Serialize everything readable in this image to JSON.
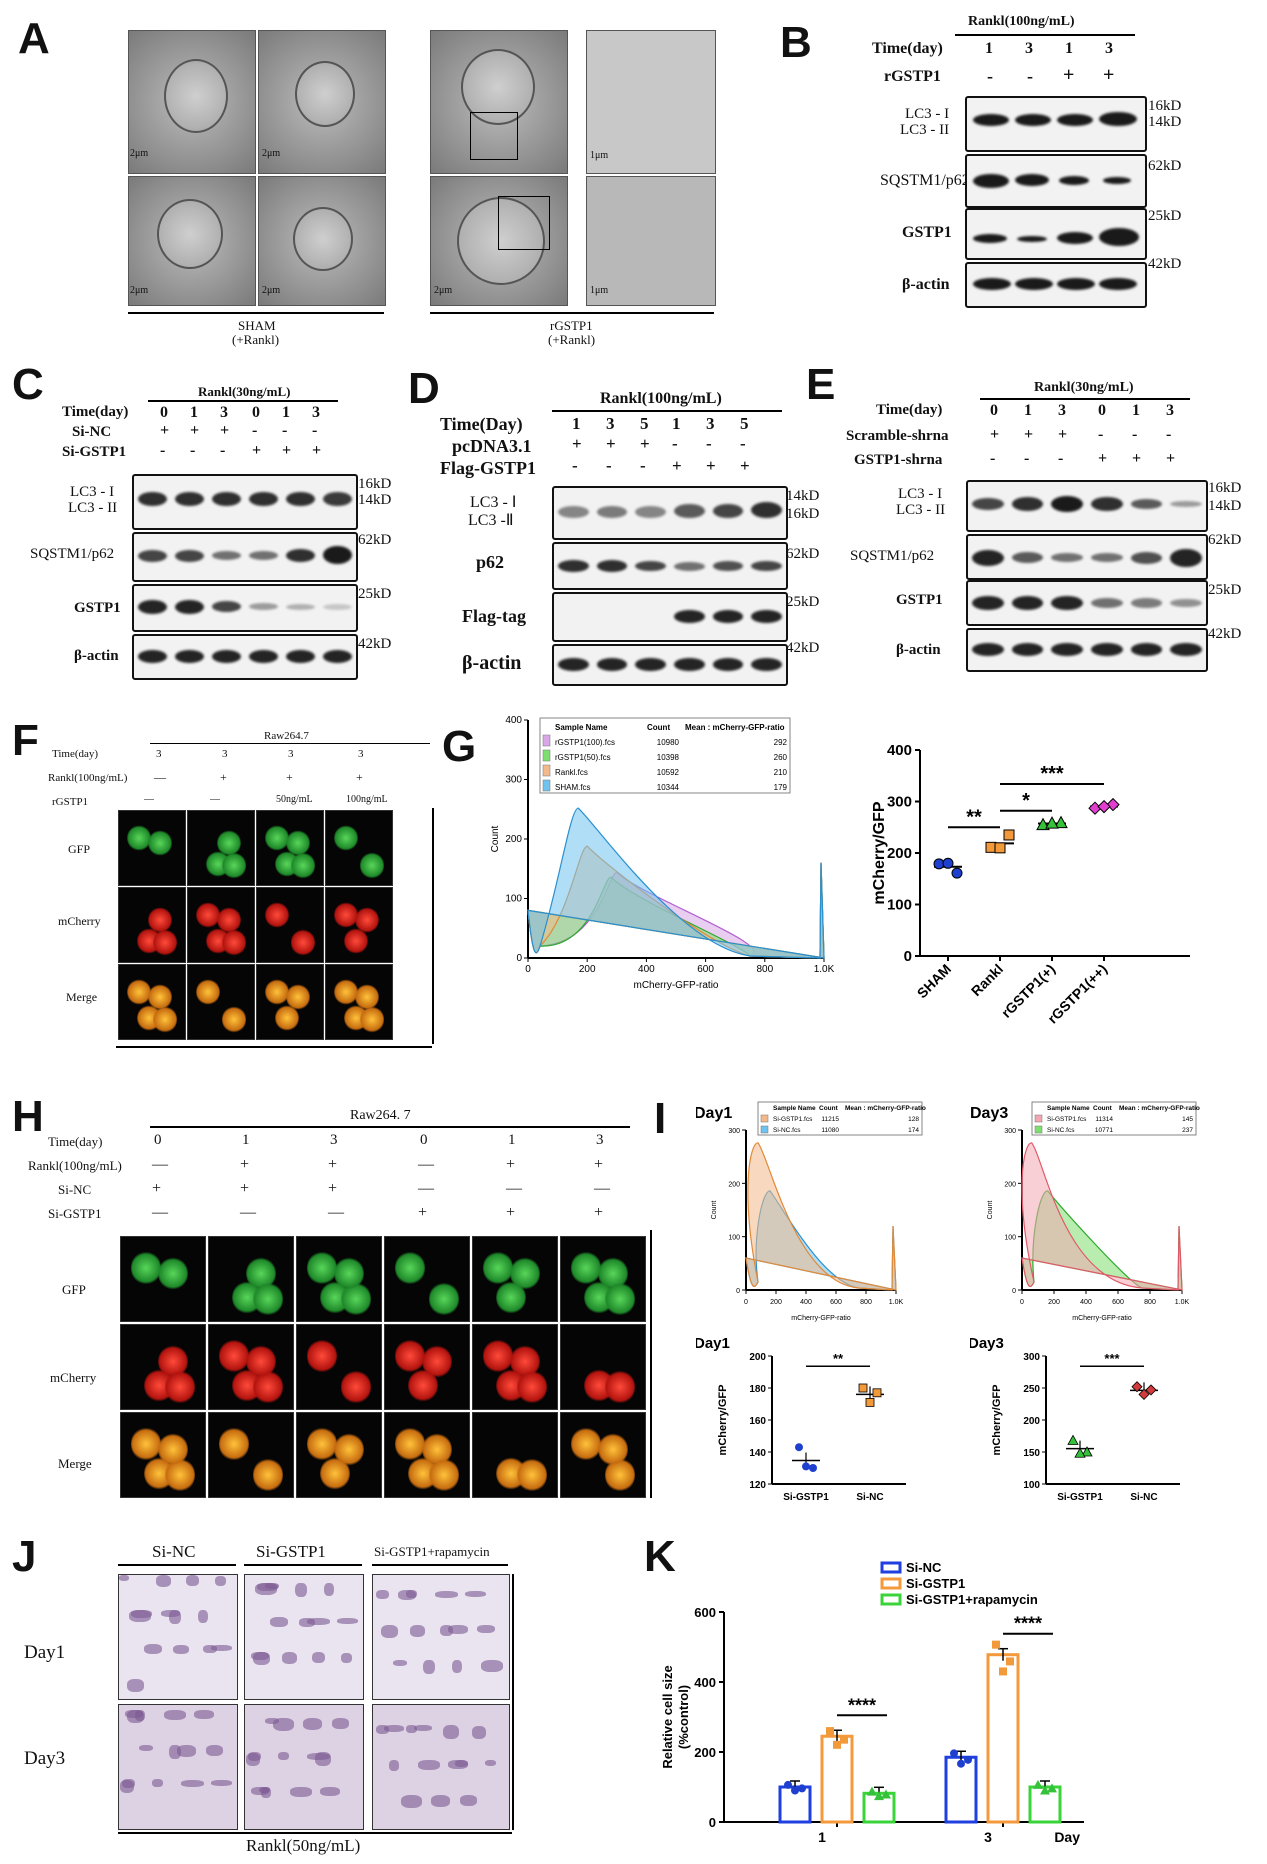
{
  "panels": {
    "A": {
      "label": "A",
      "scale": "2μm",
      "scale_zoom": "1μm",
      "group1": "SHAM",
      "group1_sub": "(+Rankl)",
      "group2": "rGSTP1",
      "group2_sub": "(+Rankl)"
    },
    "B": {
      "label": "B",
      "header": "Rankl(100ng/mL)",
      "row1": "Time(day)",
      "times": [
        "1",
        "3",
        "1",
        "3"
      ],
      "row2": "rGSTP1",
      "signs": [
        "-",
        "-",
        "+",
        "+"
      ],
      "blots": [
        {
          "name": "LC3 - I",
          "name2": "LC3 - II",
          "kd": "16kD",
          "kd2": "14kD"
        },
        {
          "name": "SQSTM1/p62",
          "kd": "62kD"
        },
        {
          "name": "GSTP1",
          "kd": "25kD"
        },
        {
          "name": "β-actin",
          "kd": "42kD"
        }
      ]
    },
    "C": {
      "label": "C",
      "header": "Rankl(30ng/mL)",
      "row1": "Time(day)",
      "times": [
        "0",
        "1",
        "3",
        "0",
        "1",
        "3"
      ],
      "row2": "Si-NC",
      "signs2": [
        "+",
        "+",
        "+",
        "-",
        "-",
        "-"
      ],
      "row3": "Si-GSTP1",
      "signs3": [
        "-",
        "-",
        "-",
        "+",
        "+",
        "+"
      ],
      "blots": [
        {
          "name": "LC3 - I",
          "name2": "LC3 - II",
          "kd": "16kD",
          "kd2": "14kD"
        },
        {
          "name": "SQSTM1/p62",
          "kd": "62kD"
        },
        {
          "name": "GSTP1",
          "kd": "25kD"
        },
        {
          "name": "β-actin",
          "kd": "42kD"
        }
      ]
    },
    "D": {
      "label": "D",
      "header": "Rankl(100ng/mL)",
      "row1": "Time(Day)",
      "times": [
        "1",
        "3",
        "5",
        "1",
        "3",
        "5"
      ],
      "row2": "pcDNA3.1",
      "signs2": [
        "+",
        "+",
        "+",
        "-",
        "-",
        "-"
      ],
      "row3": "Flag-GSTP1",
      "signs3": [
        "-",
        "-",
        "-",
        "+",
        "+",
        "+"
      ],
      "blots": [
        {
          "name": "LC3 - Ⅰ",
          "name2": "LC3 -Ⅱ",
          "kd": "14kD",
          "kd2": "16kD"
        },
        {
          "name": "p62",
          "kd": "62kD"
        },
        {
          "name": "Flag-tag",
          "kd": "25kD"
        },
        {
          "name": "β-actin",
          "kd": "42kD"
        }
      ]
    },
    "E": {
      "label": "E",
      "header": "Rankl(30ng/mL)",
      "row1": "Time(day)",
      "times": [
        "0",
        "1",
        "3",
        "0",
        "1",
        "3"
      ],
      "row2": "Scramble-shrna",
      "signs2": [
        "+",
        "+",
        "+",
        "-",
        "-",
        "-"
      ],
      "row3": "GSTP1-shrna",
      "signs3": [
        "-",
        "-",
        "-",
        "+",
        "+",
        "+"
      ],
      "blots": [
        {
          "name": "LC3 - I",
          "name2": "LC3 - II",
          "kd": "16kD",
          "kd2": "14kD"
        },
        {
          "name": "SQSTM1/p62",
          "kd": "62kD"
        },
        {
          "name": "GSTP1",
          "kd": "25kD"
        },
        {
          "name": "β-actin",
          "kd": "42kD"
        }
      ]
    },
    "F": {
      "label": "F",
      "header": "Raw264.7",
      "row1": "Time(day)",
      "times": [
        "3",
        "3",
        "3",
        "3"
      ],
      "row2": "Rankl(100ng/mL)",
      "signs2": [
        "—",
        "+",
        "+",
        "+"
      ],
      "row3": "rGSTP1",
      "signs3": [
        "—",
        "—",
        "50ng/mL",
        "100ng/mL"
      ],
      "rows": [
        "GFP",
        "mCherry",
        "Merge"
      ]
    },
    "G": {
      "label": "G",
      "hist": {
        "ylabel": "Count",
        "xlabel": "mCherry-GFP-ratio",
        "yticks": [
          "0",
          "100",
          "200",
          "300",
          "400"
        ],
        "xticks": [
          "0",
          "200",
          "400",
          "600",
          "800",
          "1.0K"
        ],
        "table_headers": [
          "Sample Name",
          "Count",
          "Mean : mCherry-GFP-ratio"
        ],
        "rows": [
          [
            "rGSTP1(100).fcs",
            "10980",
            "292"
          ],
          [
            "rGSTP1(50).fcs",
            "10398",
            "260"
          ],
          [
            "Rankl.fcs",
            "10592",
            "210"
          ],
          [
            "SHAM.fcs",
            "10344",
            "179"
          ]
        ],
        "colors": [
          "#d9a6e8",
          "#7ddf6e",
          "#f3b98a",
          "#6fc3ee"
        ]
      },
      "scatter": {
        "ylabel": "mCherry/GFP",
        "yticks": [
          "0",
          "100",
          "200",
          "300",
          "400"
        ],
        "categories": [
          "SHAM",
          "Rankl",
          "rGSTP1(+)",
          "rGSTP1(++)"
        ],
        "sig": [
          "**",
          "*",
          "***"
        ]
      }
    },
    "H": {
      "label": "H",
      "header": "Raw264. 7",
      "row1": "Time(day)",
      "times": [
        "0",
        "1",
        "3",
        "0",
        "1",
        "3"
      ],
      "row2": "Rankl(100ng/mL)",
      "signs2": [
        "—",
        "+",
        "+",
        "—",
        "+",
        "+"
      ],
      "row3": "Si-NC",
      "signs3": [
        "+",
        "+",
        "+",
        "—",
        "—",
        "—"
      ],
      "row4": "Si-GSTP1",
      "signs4": [
        "—",
        "—",
        "—",
        "+",
        "+",
        "+"
      ],
      "rows": [
        "GFP",
        "mCherry",
        "Merge"
      ]
    },
    "I": {
      "label": "I",
      "day1": {
        "title": "Day1",
        "table_headers": [
          "Sample Name",
          "Count",
          "Mean : mCherry-GFP-ratio"
        ],
        "rows": [
          [
            "Si-GSTP1.fcs",
            "11215",
            "128"
          ],
          [
            "Si-NC.fcs",
            "11080",
            "174"
          ]
        ],
        "yticks": [
          "0",
          "100",
          "200",
          "300"
        ],
        "xticks": [
          "0",
          "200",
          "400",
          "600",
          "800",
          "1.0K"
        ],
        "ylabel": "Count",
        "xlabel": "mCherry-GFP-ratio"
      },
      "day3": {
        "title": "Day3",
        "table_headers": [
          "Sample Name",
          "Count",
          "Mean : mCherry-GFP-ratio"
        ],
        "rows": [
          [
            "Si-GSTP1.fcs",
            "11314",
            "145"
          ],
          [
            "Si-NC.fcs",
            "10771",
            "237"
          ]
        ],
        "yticks": [
          "0",
          "100",
          "200",
          "300"
        ],
        "xticks": [
          "0",
          "200",
          "400",
          "600",
          "800",
          "1.0K"
        ],
        "ylabel": "Count",
        "xlabel": "mCherry-GFP-ratio"
      },
      "s1": {
        "title": "Day1",
        "ylabel": "mCherry/GFP",
        "yticks": [
          "120",
          "140",
          "160",
          "180",
          "200"
        ],
        "cats": [
          "Si-GSTP1",
          "Si-NC"
        ],
        "sig": "**"
      },
      "s3": {
        "title": "Day3",
        "ylabel": "mCherry/GFP",
        "yticks": [
          "100",
          "150",
          "200",
          "250",
          "300"
        ],
        "cats": [
          "Si-GSTP1",
          "Si-NC"
        ],
        "sig": "***"
      }
    },
    "J": {
      "label": "J",
      "cols": [
        "Si-NC",
        "Si-GSTP1",
        "Si-GSTP1+rapamycin"
      ],
      "rows": [
        "Day1",
        "Day3"
      ],
      "footer": "Rankl(50ng/mL)"
    },
    "K": {
      "label": "K",
      "ylabel": "Relative cell size",
      "ylabel2": "(%control)",
      "yticks": [
        "0",
        "200",
        "400",
        "600"
      ],
      "xticks": [
        "1",
        "3"
      ],
      "xlabel": "Day",
      "legend": [
        "Si-NC",
        "Si-GSTP1",
        "Si-GSTP1+rapamycin"
      ],
      "sig": [
        "****",
        "****"
      ]
    }
  },
  "chart_data": [
    {
      "type": "scatter",
      "title": "",
      "xlabel": "",
      "ylabel": "mCherry/GFP",
      "categories": [
        "SHAM",
        "Rankl",
        "rGSTP1(+)",
        "rGSTP1(++)"
      ],
      "ylim": [
        0,
        400
      ],
      "series": [
        {
          "values": [
            [
              179,
              161,
              180
            ],
            [
              211,
              235,
              210
            ],
            [
              255,
              259,
              258
            ],
            [
              287,
              294,
              290
            ]
          ]
        }
      ],
      "colors": [
        "#1f3fcf",
        "#f29a3a",
        "#35c23a",
        "#e23fd0"
      ]
    },
    {
      "type": "scatter",
      "title": "Day1",
      "ylabel": "mCherry/GFP",
      "categories": [
        "Si-GSTP1",
        "Si-NC"
      ],
      "ylim": [
        120,
        200
      ],
      "series": [
        {
          "values": [
            [
              143,
              130,
              131
            ],
            [
              180,
              177,
              171
            ]
          ]
        }
      ],
      "colors": [
        "#1f3fcf",
        "#f29a3a"
      ]
    },
    {
      "type": "scatter",
      "title": "Day3",
      "ylabel": "mCherry/GFP",
      "categories": [
        "Si-GSTP1",
        "Si-NC"
      ],
      "ylim": [
        100,
        300
      ],
      "series": [
        {
          "values": [
            [
              168,
              150,
              148
            ],
            [
              252,
              247,
              240
            ]
          ]
        }
      ],
      "colors": [
        "#35c23a",
        "#d43a3a"
      ]
    },
    {
      "type": "bar",
      "title": "",
      "xlabel": "Day",
      "ylabel": "Relative cell size (%control)",
      "categories": [
        "1",
        "3"
      ],
      "ylim": [
        0,
        600
      ],
      "series": [
        {
          "name": "Si-NC",
          "values": [
            100,
            185
          ]
        },
        {
          "name": "Si-GSTP1",
          "values": [
            245,
            478
          ]
        },
        {
          "name": "Si-GSTP1+rapamycin",
          "values": [
            82,
            100
          ]
        }
      ],
      "colors": [
        "#1f3fe0",
        "#f59a3c",
        "#3ad43a"
      ]
    }
  ]
}
